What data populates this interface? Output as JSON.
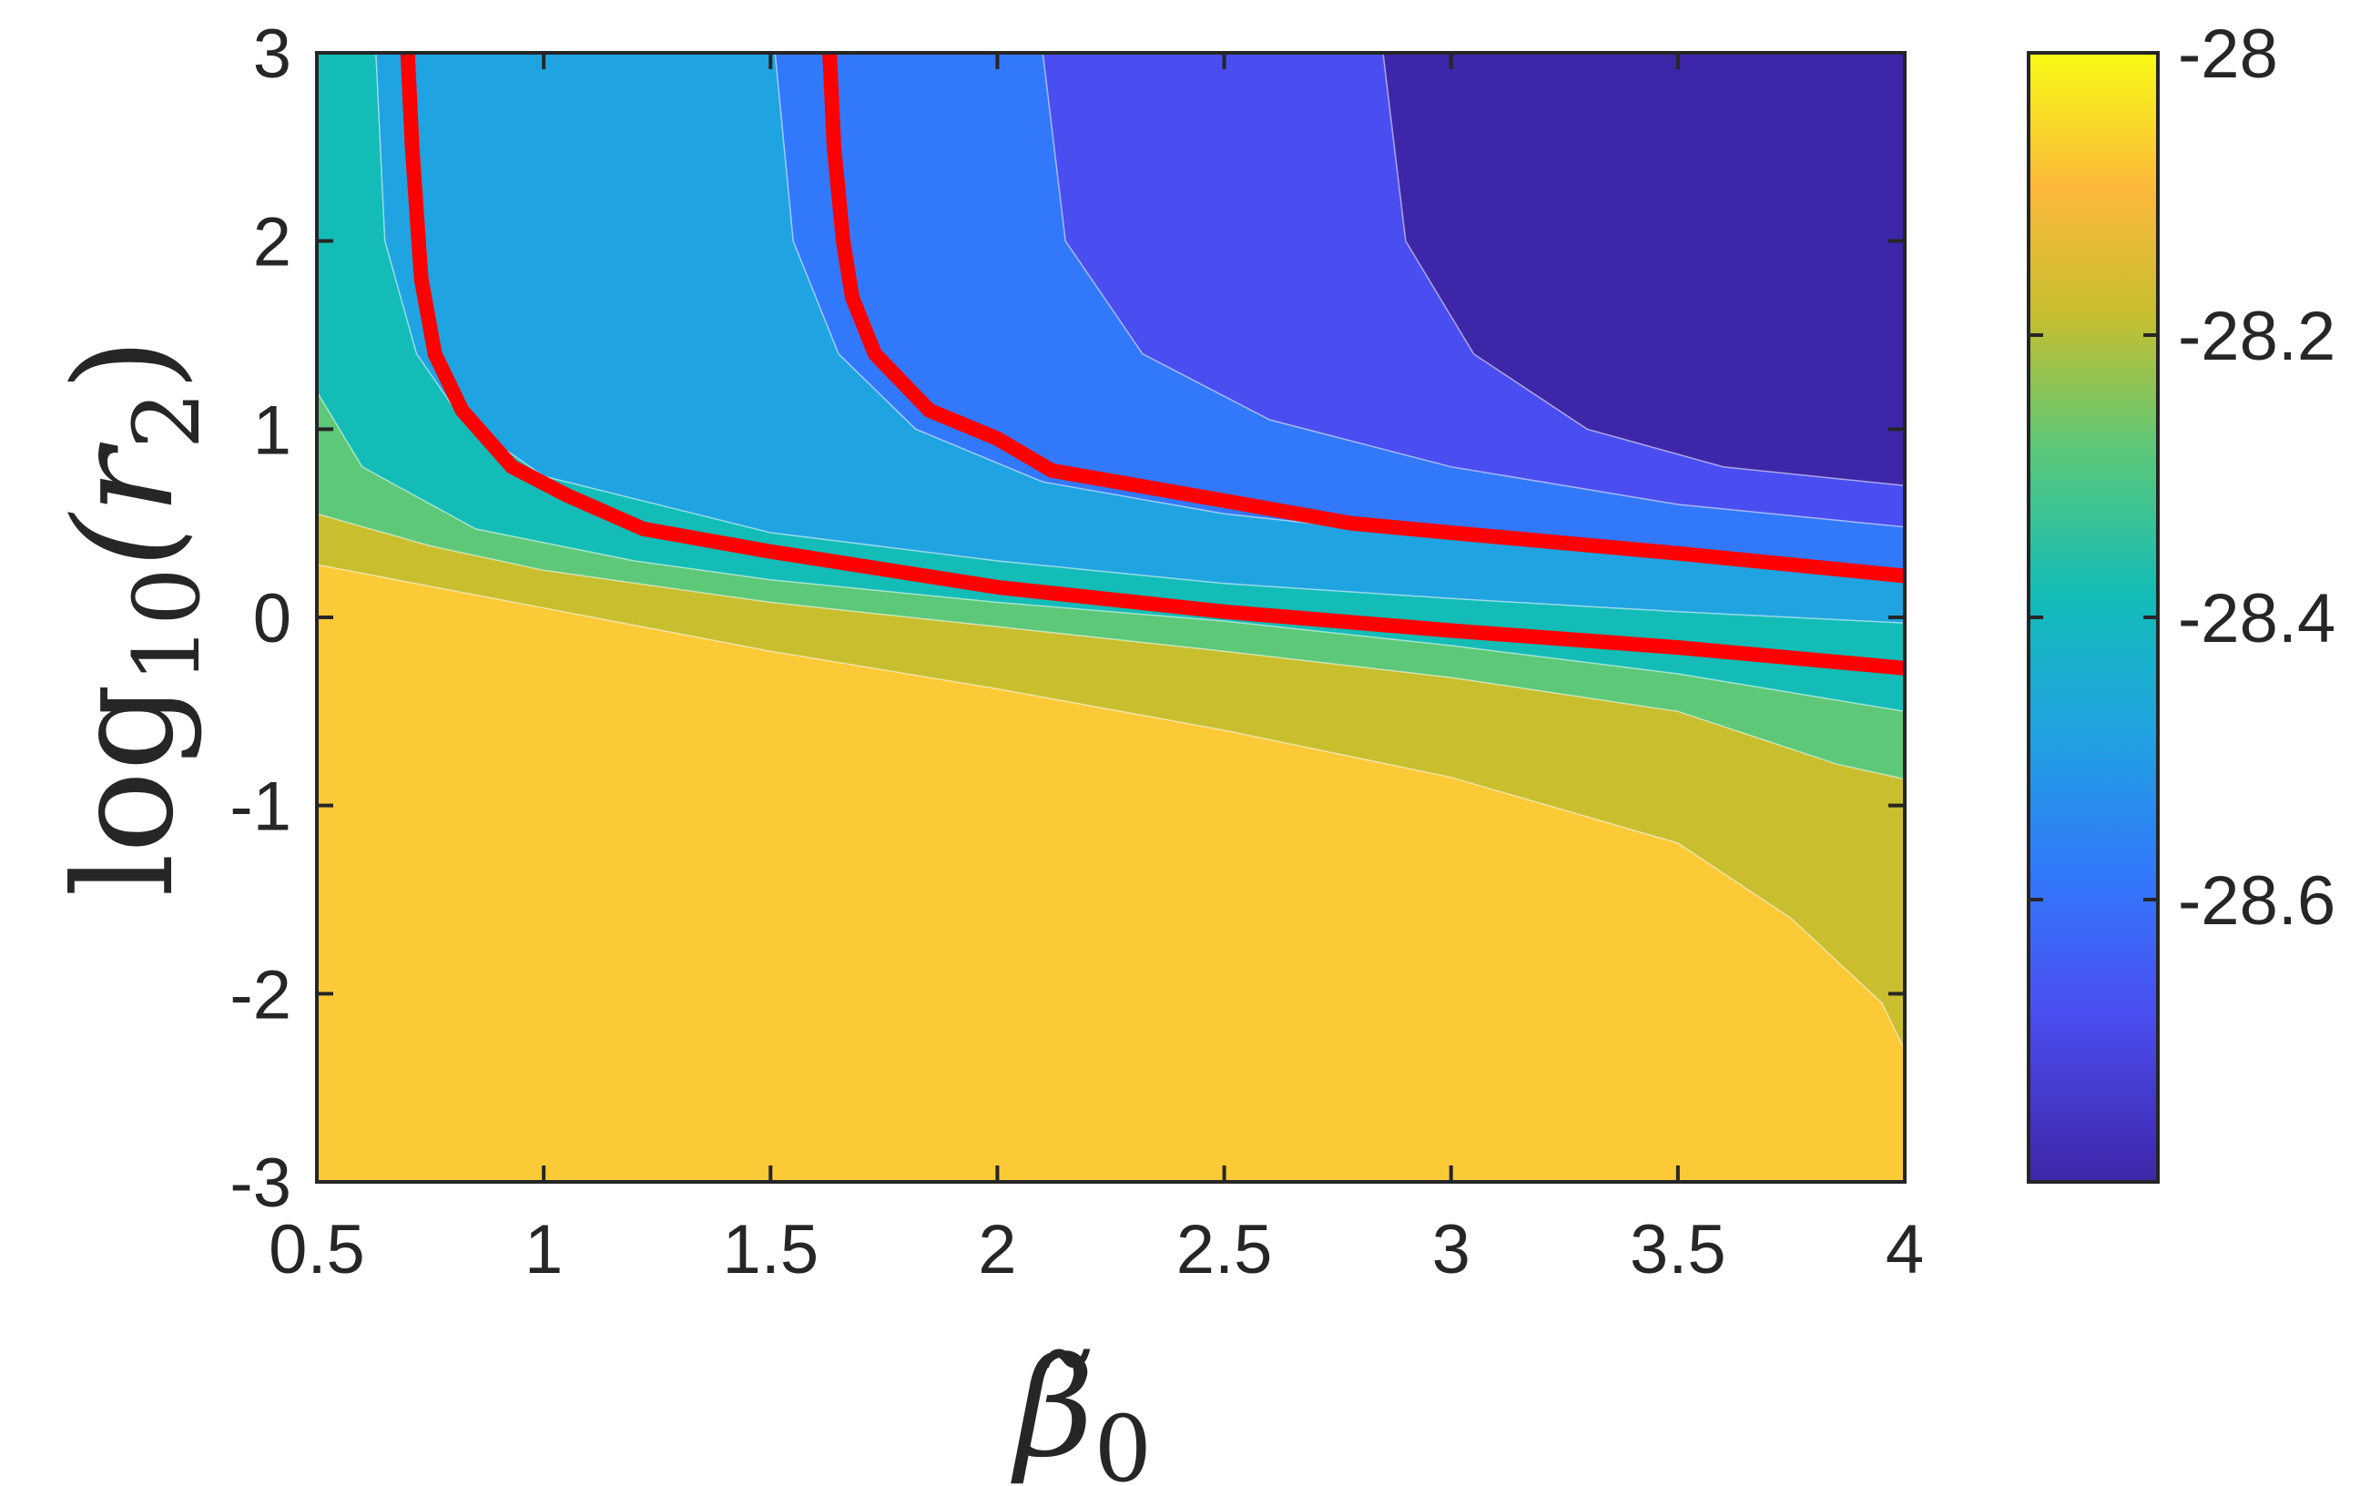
{
  "chart_data": {
    "type": "contour",
    "x_label_base": "β̃",
    "x_label_sub": "0",
    "y_label_prefix": "log",
    "y_label_sub": "10",
    "y_label_arg": "(r",
    "y_label_arg_sub": "2",
    "y_label_close": ")",
    "xlim": [
      0.5,
      4
    ],
    "ylim": [
      -3,
      3
    ],
    "x_ticks": [
      "0.5",
      "1",
      "1.5",
      "2",
      "2.5",
      "3",
      "3.5",
      "4"
    ],
    "x_tick_values": [
      0.5,
      1,
      1.5,
      2,
      2.5,
      3,
      3.5,
      4
    ],
    "y_ticks": [
      "3",
      "2",
      "1",
      "0",
      "-1",
      "-2",
      "-3"
    ],
    "y_tick_values": [
      3,
      2,
      1,
      0,
      -1,
      -2,
      -3
    ],
    "colorbar": {
      "range": [
        -28.8,
        -28
      ],
      "ticks": [
        "-28",
        "-28.2",
        "-28.4",
        "-28.6"
      ],
      "tick_values": [
        -28,
        -28.2,
        -28.4,
        -28.6
      ],
      "colors": [
        "#3e26a8",
        "#4a4ef0",
        "#3278fb",
        "#20a3e1",
        "#13bcb7",
        "#5cc878",
        "#c8be2e",
        "#fcc937",
        "#f9fa14"
      ]
    },
    "level_boundaries": [
      {
        "level": -28.05,
        "points": [
          [
            0.5,
            0.28
          ],
          [
            1.0,
            0.05
          ],
          [
            1.5,
            -0.18
          ],
          [
            2.0,
            -0.38
          ],
          [
            2.5,
            -0.6
          ],
          [
            3.0,
            -0.85
          ],
          [
            3.5,
            -1.2
          ],
          [
            3.75,
            -1.6
          ],
          [
            3.95,
            -2.05
          ],
          [
            4.0,
            -2.3
          ]
        ]
      },
      {
        "level": -28.15,
        "points": [
          [
            0.5,
            0.55
          ],
          [
            0.75,
            0.38
          ],
          [
            1.0,
            0.25
          ],
          [
            1.5,
            0.08
          ],
          [
            2.0,
            -0.05
          ],
          [
            2.5,
            -0.18
          ],
          [
            3.0,
            -0.32
          ],
          [
            3.5,
            -0.5
          ],
          [
            3.85,
            -0.78
          ],
          [
            4.0,
            -0.86
          ]
        ]
      },
      {
        "level": -28.25,
        "points": [
          [
            0.5,
            1.2
          ],
          [
            0.6,
            0.8
          ],
          [
            0.85,
            0.47
          ],
          [
            1.2,
            0.3
          ],
          [
            1.5,
            0.2
          ],
          [
            2.0,
            0.08
          ],
          [
            2.5,
            -0.02
          ],
          [
            3.0,
            -0.15
          ],
          [
            3.5,
            -0.3
          ],
          [
            4.0,
            -0.5
          ]
        ]
      },
      {
        "level": -28.35,
        "points": [
          [
            0.63,
            3
          ],
          [
            0.65,
            2.0
          ],
          [
            0.72,
            1.4
          ],
          [
            0.82,
            1.05
          ],
          [
            1.0,
            0.75
          ],
          [
            1.5,
            0.45
          ],
          [
            2.0,
            0.3
          ],
          [
            2.5,
            0.18
          ],
          [
            3.0,
            0.1
          ],
          [
            3.5,
            0.03
          ],
          [
            4.0,
            -0.03
          ]
        ]
      },
      {
        "level": -28.45,
        "points": [
          [
            1.51,
            3
          ],
          [
            1.55,
            2.0
          ],
          [
            1.65,
            1.4
          ],
          [
            1.82,
            1.0
          ],
          [
            2.1,
            0.72
          ],
          [
            2.5,
            0.55
          ],
          [
            3.0,
            0.42
          ],
          [
            3.5,
            0.32
          ],
          [
            4.0,
            0.22
          ]
        ]
      },
      {
        "level": -28.55,
        "points": [
          [
            2.1,
            3
          ],
          [
            2.15,
            2.0
          ],
          [
            2.32,
            1.4
          ],
          [
            2.6,
            1.05
          ],
          [
            3.0,
            0.8
          ],
          [
            3.5,
            0.6
          ],
          [
            4.0,
            0.48
          ]
        ]
      },
      {
        "level": -28.65,
        "points": [
          [
            2.85,
            3
          ],
          [
            2.9,
            2.0
          ],
          [
            3.05,
            1.4
          ],
          [
            3.3,
            1.0
          ],
          [
            3.6,
            0.8
          ],
          [
            4.0,
            0.7
          ]
        ]
      }
    ],
    "highlight_contours": [
      {
        "color": "#ff0000",
        "points": [
          [
            0.7,
            3
          ],
          [
            0.71,
            2.5
          ],
          [
            0.73,
            1.8
          ],
          [
            0.76,
            1.4
          ],
          [
            0.82,
            1.1
          ],
          [
            0.93,
            0.8
          ],
          [
            1.05,
            0.65
          ],
          [
            1.22,
            0.47
          ],
          [
            1.5,
            0.35
          ],
          [
            2.0,
            0.16
          ],
          [
            2.5,
            0.03
          ],
          [
            3.0,
            -0.07
          ],
          [
            3.5,
            -0.16
          ],
          [
            4.0,
            -0.27
          ]
        ]
      },
      {
        "color": "#ff0000",
        "points": [
          [
            1.63,
            3
          ],
          [
            1.64,
            2.5
          ],
          [
            1.66,
            2.0
          ],
          [
            1.68,
            1.7
          ],
          [
            1.73,
            1.4
          ],
          [
            1.85,
            1.1
          ],
          [
            2.0,
            0.95
          ],
          [
            2.12,
            0.78
          ],
          [
            2.5,
            0.62
          ],
          [
            2.78,
            0.5
          ],
          [
            3.0,
            0.45
          ],
          [
            3.5,
            0.34
          ],
          [
            4.0,
            0.22
          ]
        ]
      }
    ]
  }
}
